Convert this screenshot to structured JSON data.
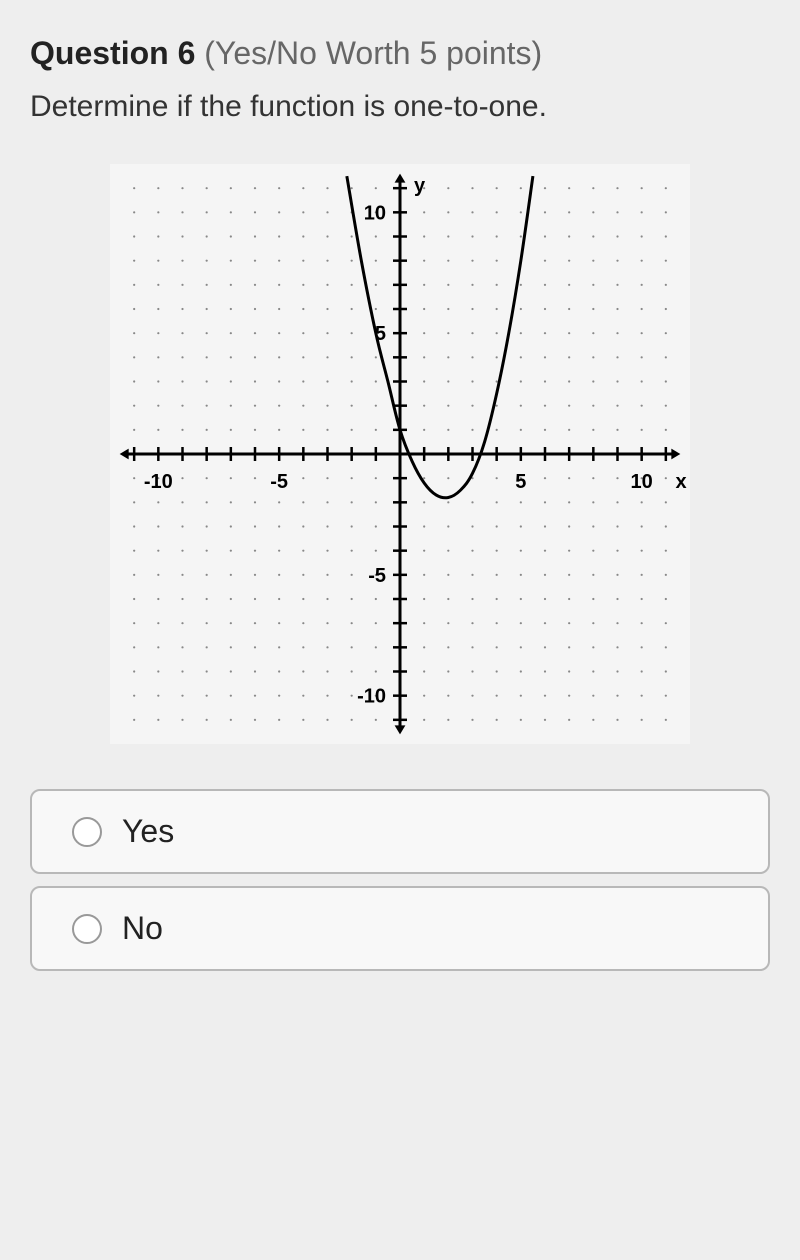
{
  "question": {
    "number_label": "Question 6",
    "meta": "(Yes/No Worth 5 points)",
    "prompt": "Determine if the function is one-to-one."
  },
  "chart": {
    "type": "line",
    "background_color": "#f5f5f5",
    "axis_color": "#000000",
    "dot_grid_color": "#888888",
    "xlim": [
      -12,
      12
    ],
    "ylim": [
      -12,
      12
    ],
    "x_tick_labels": [
      -10,
      -5,
      5,
      10
    ],
    "y_tick_labels": [
      -10,
      -5,
      5,
      10
    ],
    "x_axis_label": "x",
    "y_axis_label": "y",
    "label_fontsize": 20,
    "tick_fontsize": 20,
    "curve_color": "#000000",
    "curve_width": 3,
    "curve_points": [
      [
        -2.2,
        11.5
      ],
      [
        -1.6,
        8.0
      ],
      [
        -1.0,
        5.0
      ],
      [
        -0.5,
        3.0
      ],
      [
        0.0,
        1.0
      ],
      [
        0.5,
        -0.3
      ],
      [
        1.0,
        -1.2
      ],
      [
        1.5,
        -1.7
      ],
      [
        2.0,
        -1.8
      ],
      [
        2.5,
        -1.5
      ],
      [
        3.0,
        -0.8
      ],
      [
        3.5,
        0.5
      ],
      [
        4.0,
        2.5
      ],
      [
        4.5,
        5.0
      ],
      [
        5.0,
        8.0
      ],
      [
        5.5,
        11.5
      ]
    ]
  },
  "answers": {
    "options": [
      {
        "label": "Yes"
      },
      {
        "label": "No"
      }
    ]
  }
}
